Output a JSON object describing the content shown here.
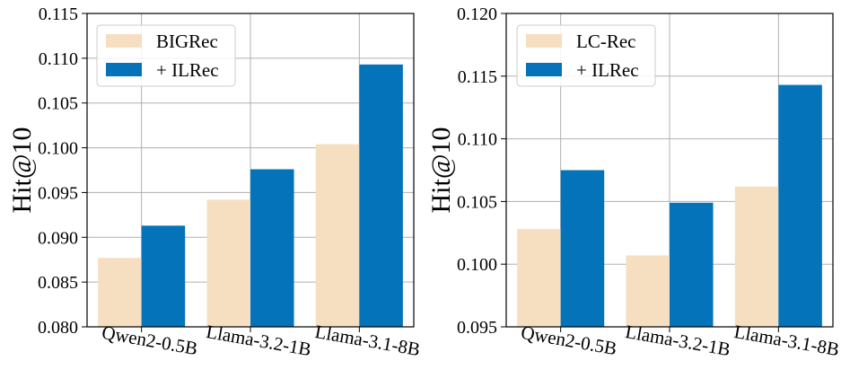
{
  "colors": {
    "baseline": "#f5dfc0",
    "ilrec": "#0573b9",
    "grid": "#b0b0b0",
    "axis": "#000000"
  },
  "chart_data": [
    {
      "type": "bar",
      "title": "",
      "xlabel": "",
      "ylabel": "Hit@10",
      "categories": [
        "Qwen2-0.5B",
        "Llama-3.2-1B",
        "Llama-3.1-8B"
      ],
      "ylim": [
        0.08,
        0.115
      ],
      "yticks": [
        "0.080",
        "0.085",
        "0.090",
        "0.095",
        "0.100",
        "0.105",
        "0.110",
        "0.115"
      ],
      "grid": true,
      "legend_position": "top-left",
      "series": [
        {
          "name": "BIGRec",
          "values": [
            0.0877,
            0.0942,
            0.1004
          ]
        },
        {
          "name": "+ ILRec",
          "values": [
            0.0913,
            0.0976,
            0.1093
          ]
        }
      ]
    },
    {
      "type": "bar",
      "title": "",
      "xlabel": "",
      "ylabel": "Hit@10",
      "categories": [
        "Qwen2-0.5B",
        "Llama-3.2-1B",
        "Llama-3.1-8B"
      ],
      "ylim": [
        0.095,
        0.12
      ],
      "yticks": [
        "0.095",
        "0.100",
        "0.105",
        "0.110",
        "0.115",
        "0.120"
      ],
      "grid": true,
      "legend_position": "top-left",
      "series": [
        {
          "name": "LC-Rec",
          "values": [
            0.1028,
            0.1007,
            0.1062
          ]
        },
        {
          "name": "+ ILRec",
          "values": [
            0.1075,
            0.1049,
            0.1143
          ]
        }
      ]
    }
  ]
}
